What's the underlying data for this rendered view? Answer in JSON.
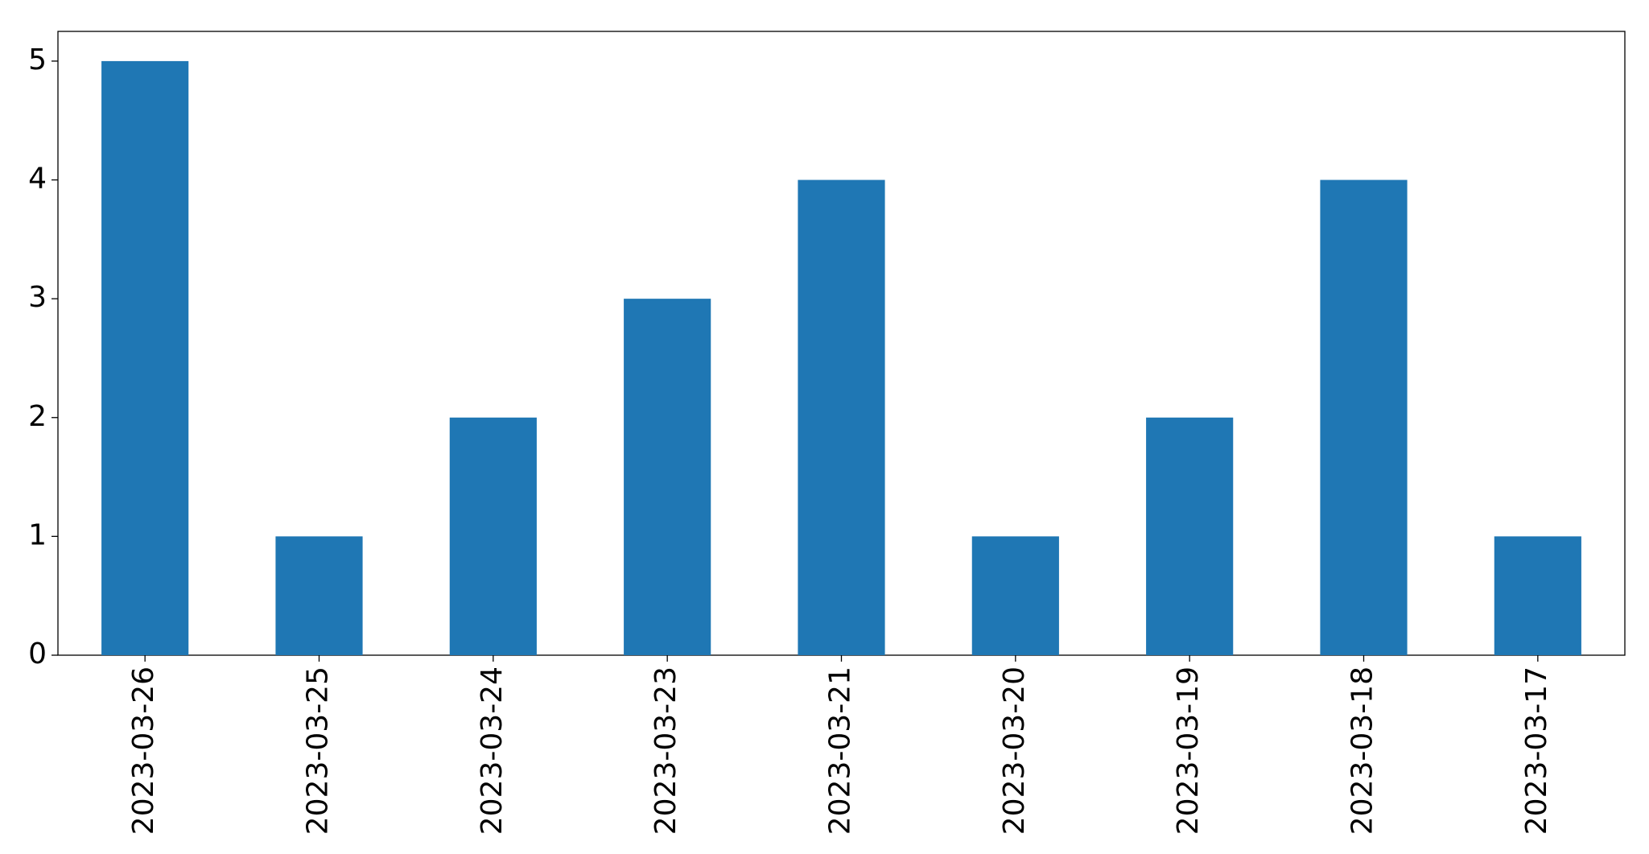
{
  "chart_data": {
    "type": "bar",
    "categories": [
      "2023-03-26",
      "2023-03-25",
      "2023-03-24",
      "2023-03-23",
      "2023-03-21",
      "2023-03-20",
      "2023-03-19",
      "2023-03-18",
      "2023-03-17"
    ],
    "values": [
      5,
      1,
      2,
      3,
      4,
      1,
      2,
      4,
      1
    ],
    "color": "#1f77b4",
    "ylim": [
      0,
      5.25
    ],
    "yticks": [
      0,
      1,
      2,
      3,
      4,
      5
    ],
    "grid": false
  }
}
